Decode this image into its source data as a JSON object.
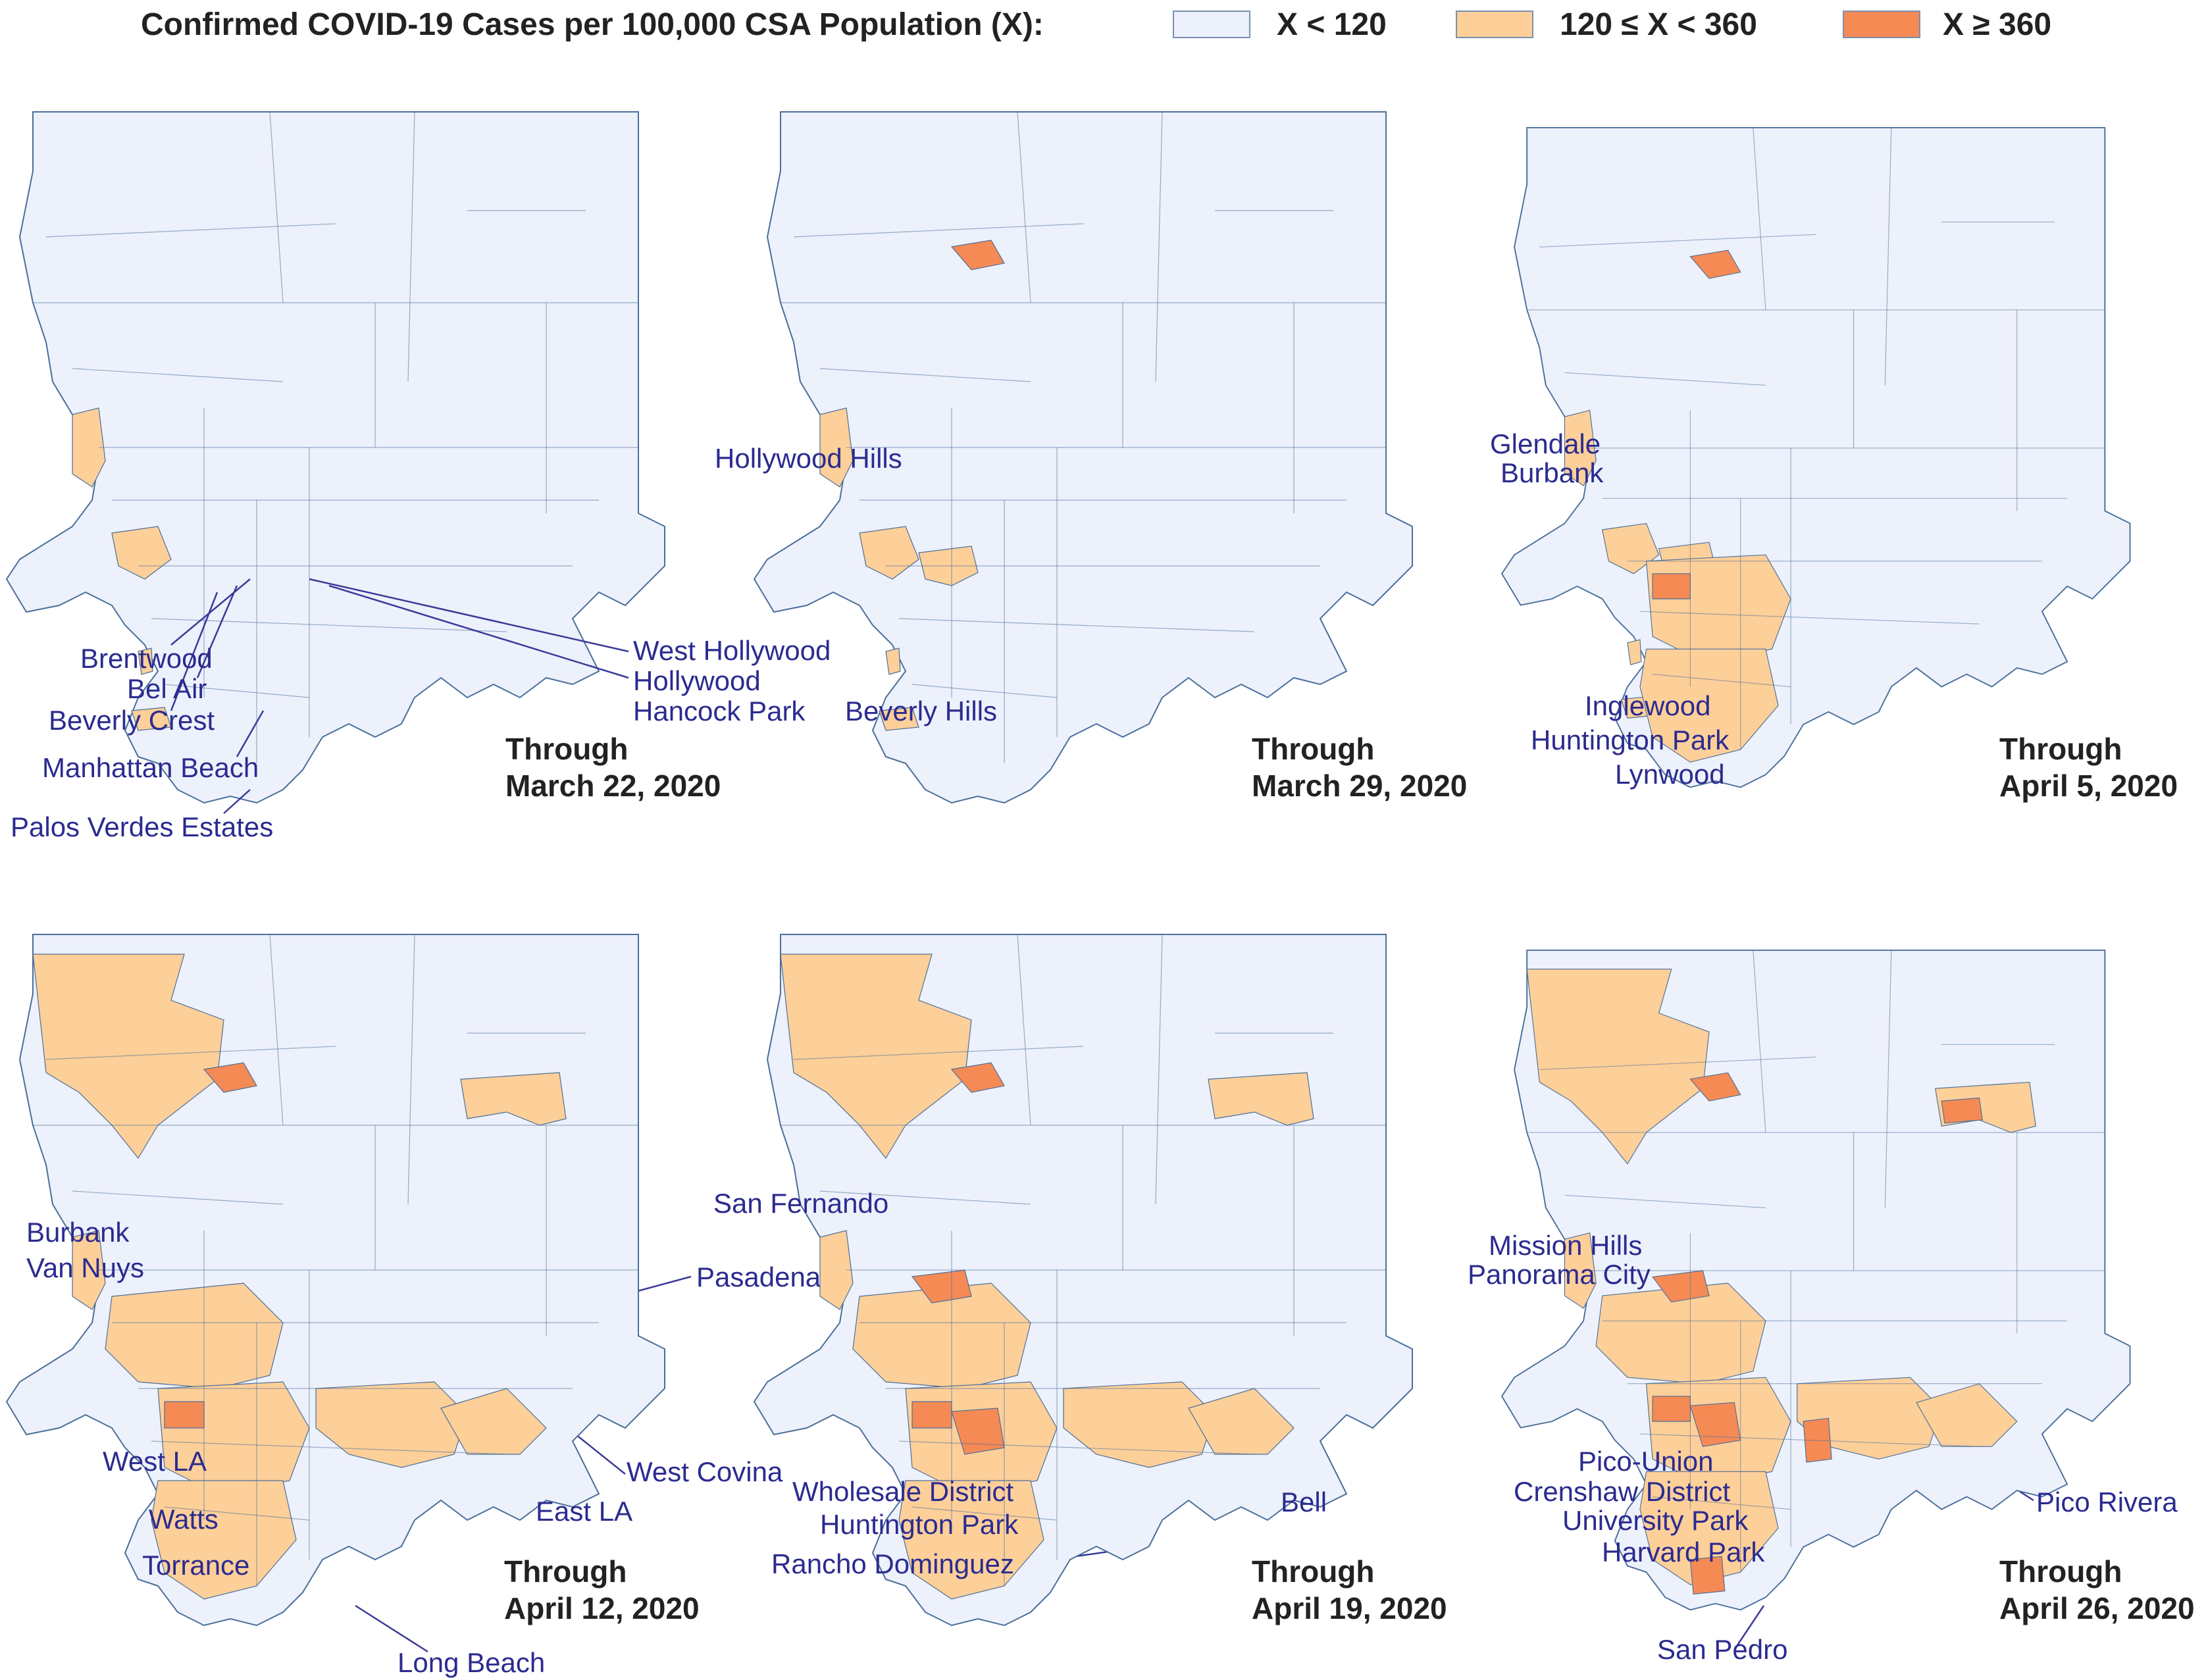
{
  "legend": {
    "title": "Confirmed COVID-19 Cases per 100,000 CSA Population (X):",
    "items": [
      {
        "label": "X < 120",
        "color": "#edf1fb"
      },
      {
        "label": "120 ≤ X < 360",
        "color": "#fdcf99"
      },
      {
        "label": "X ≥ 360",
        "color": "#f58a55"
      }
    ]
  },
  "colors": {
    "outline": "#4a6f9a",
    "line": "#3a3a9a",
    "low": "#edf1fb",
    "mid": "#fdcf99",
    "high": "#f58a55"
  },
  "panels": [
    {
      "id": "mar22",
      "through": "Through",
      "date": "March 22, 2020",
      "labels": [
        "Brentwood",
        "Bel Air",
        "Beverly Crest",
        "Manhattan Beach",
        "Palos Verdes Estates",
        "West Hollywood",
        "Hollywood",
        "Hancock Park"
      ],
      "level": "early1"
    },
    {
      "id": "mar29",
      "through": "Through",
      "date": "March 29, 2020",
      "labels": [
        "Hollywood Hills",
        "Beverly Hills"
      ],
      "level": "early2"
    },
    {
      "id": "apr05",
      "through": "Through",
      "date": "April 5, 2020",
      "labels": [
        "Glendale",
        "Burbank",
        "Inglewood",
        "Huntington Park",
        "Lynwood"
      ],
      "level": "early3"
    },
    {
      "id": "apr12",
      "through": "Through",
      "date": "April 12, 2020",
      "labels": [
        "Burbank",
        "Van Nuys",
        "West LA",
        "Watts",
        "Torrance",
        "Long Beach",
        "Pasadena",
        "West Covina",
        "East LA"
      ],
      "level": "mid1"
    },
    {
      "id": "apr19",
      "through": "Through",
      "date": "April 19, 2020",
      "labels": [
        "San Fernando",
        "Wholesale District",
        "Huntington Park",
        "Rancho Dominguez",
        "Bell"
      ],
      "level": "mid2"
    },
    {
      "id": "apr26",
      "through": "Through",
      "date": "April 26, 2020",
      "labels": [
        "Mission Hills",
        "Panorama City",
        "Pico-Union",
        "Crenshaw District",
        "University Park",
        "Harvard Park",
        "San Pedro",
        "Pico Rivera"
      ],
      "level": "mid3"
    }
  ]
}
